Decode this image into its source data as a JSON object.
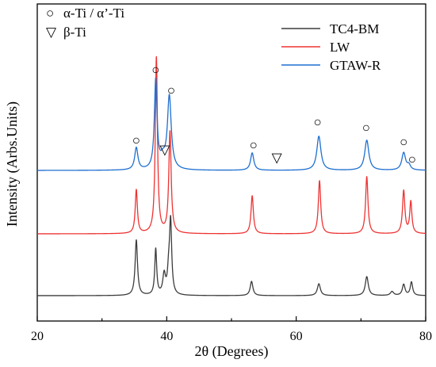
{
  "chart_data": {
    "type": "line",
    "xlabel": "2θ (Degrees)",
    "ylabel": "Intensity (Arbs.Units)",
    "xlim": [
      20,
      80
    ],
    "x_ticks": [
      20,
      40,
      60,
      80
    ],
    "grid": false,
    "legend_position": "top-right",
    "baseline_intensity": 0,
    "series": [
      {
        "name": "TC4-BM",
        "color": "#3c3c3c",
        "offset": 0,
        "peaks": [
          {
            "x": 35.3,
            "h": 70,
            "w": 0.22
          },
          {
            "x": 38.3,
            "h": 58,
            "w": 0.18
          },
          {
            "x": 39.6,
            "h": 25,
            "w": 0.25
          },
          {
            "x": 40.3,
            "h": 26,
            "w": 0.22
          },
          {
            "x": 40.6,
            "h": 90,
            "w": 0.2
          },
          {
            "x": 53.1,
            "h": 18,
            "w": 0.25
          },
          {
            "x": 63.5,
            "h": 15,
            "w": 0.28
          },
          {
            "x": 70.9,
            "h": 24,
            "w": 0.28
          },
          {
            "x": 74.8,
            "h": 5,
            "w": 0.3
          },
          {
            "x": 76.6,
            "h": 14,
            "w": 0.25
          },
          {
            "x": 77.8,
            "h": 17,
            "w": 0.22
          }
        ]
      },
      {
        "name": "LW",
        "color": "#ee3333",
        "offset": 78,
        "peaks": [
          {
            "x": 35.3,
            "h": 55,
            "w": 0.2
          },
          {
            "x": 38.4,
            "h": 222,
            "w": 0.2
          },
          {
            "x": 40.5,
            "h": 128,
            "w": 0.22
          },
          {
            "x": 53.2,
            "h": 48,
            "w": 0.22
          },
          {
            "x": 63.6,
            "h": 67,
            "w": 0.22
          },
          {
            "x": 70.9,
            "h": 72,
            "w": 0.22
          },
          {
            "x": 76.6,
            "h": 54,
            "w": 0.22
          },
          {
            "x": 77.7,
            "h": 40,
            "w": 0.2
          }
        ]
      },
      {
        "name": "GTAW-R",
        "color": "#1e6fd0",
        "offset": 158,
        "peaks": [
          {
            "x": 35.3,
            "h": 28,
            "w": 0.3
          },
          {
            "x": 38.3,
            "h": 112,
            "w": 0.25
          },
          {
            "x": 39.4,
            "h": 12,
            "w": 0.5
          },
          {
            "x": 40.4,
            "h": 92,
            "w": 0.35
          },
          {
            "x": 53.2,
            "h": 22,
            "w": 0.3
          },
          {
            "x": 63.5,
            "h": 43,
            "w": 0.38
          },
          {
            "x": 70.9,
            "h": 38,
            "w": 0.38
          },
          {
            "x": 76.6,
            "h": 22,
            "w": 0.35
          },
          {
            "x": 77.4,
            "h": 6,
            "w": 0.3
          }
        ]
      }
    ],
    "phase_legend": [
      {
        "symbol": "○",
        "label": "α-Ti / α’-Ti"
      },
      {
        "symbol": "▽",
        "label": "β-Ti"
      }
    ],
    "annotations": [
      {
        "symbol": "○",
        "x": 35.3,
        "intensity": 196
      },
      {
        "symbol": "○",
        "x": 38.3,
        "intensity": 285
      },
      {
        "symbol": "○",
        "x": 40.7,
        "intensity": 259
      },
      {
        "symbol": "▽",
        "x": 39.7,
        "intensity": 184
      },
      {
        "symbol": "○",
        "x": 53.4,
        "intensity": 190
      },
      {
        "symbol": "▽",
        "x": 57.0,
        "intensity": 174
      },
      {
        "symbol": "○",
        "x": 63.3,
        "intensity": 219
      },
      {
        "symbol": "○",
        "x": 70.8,
        "intensity": 212
      },
      {
        "symbol": "○",
        "x": 76.6,
        "intensity": 194
      },
      {
        "symbol": "○",
        "x": 77.9,
        "intensity": 172
      }
    ]
  }
}
